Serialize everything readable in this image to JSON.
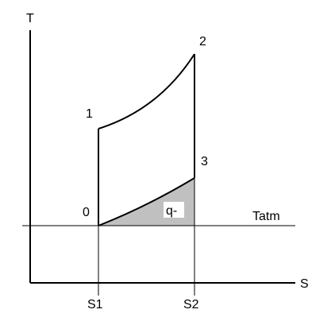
{
  "diagram": {
    "axes": {
      "y_label": "T",
      "x_label": "S"
    },
    "points": {
      "p0": "0",
      "p1": "1",
      "p2": "2",
      "p3": "3"
    },
    "x_ticks": {
      "s1": "S1",
      "s2": "S2"
    },
    "reference_line_label": "Tatm",
    "area_label": "q-",
    "colors": {
      "line": "#000000",
      "shaded_area": "#c0c0c0",
      "label_box": "#ffffff"
    }
  }
}
